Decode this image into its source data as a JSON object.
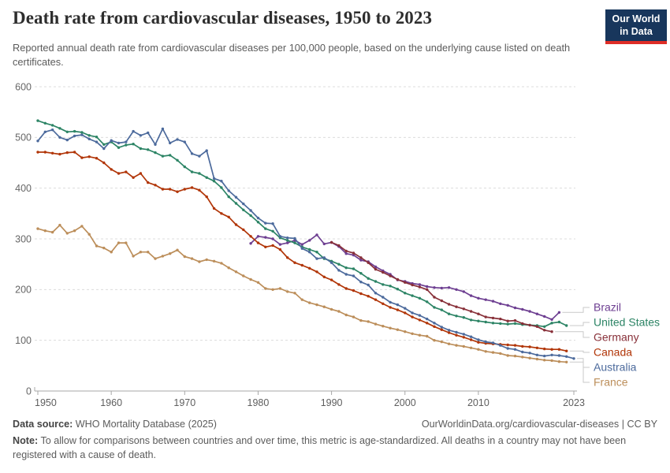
{
  "header": {
    "title": "Death rate from cardiovascular diseases, 1950 to 2023",
    "subtitle": "Reported annual death rate from cardiovascular diseases per 100,000 people, based on the underlying cause listed on death certificates.",
    "logo": {
      "line1": "Our World",
      "line2": "in Data",
      "bg_color": "#18365C",
      "accent_color": "#DE2D26"
    }
  },
  "chart_data": {
    "type": "line",
    "title": "Death rate from cardiovascular diseases, 1950 to 2023",
    "xlabel": "",
    "ylabel": "",
    "x_ticks": [
      1950,
      1960,
      1970,
      1980,
      1990,
      2000,
      2010,
      2023
    ],
    "y_ticks": [
      0,
      100,
      200,
      300,
      400,
      500,
      600
    ],
    "xlim": [
      1950,
      2023
    ],
    "ylim": [
      0,
      600
    ],
    "grid": "horizontal-dashed",
    "legend_position": "right",
    "series": [
      {
        "name": "Brazil",
        "color": "#6D3E91",
        "start_year": 1979,
        "values": [
          291,
          305,
          303,
          300,
          289,
          292,
          297,
          289,
          297,
          308,
          290,
          293,
          285,
          271,
          268,
          258,
          255,
          245,
          237,
          230,
          219,
          216,
          212,
          210,
          206,
          204,
          203,
          204,
          200,
          196,
          188,
          183,
          180,
          177,
          172,
          169,
          164,
          161,
          157,
          152,
          147,
          141,
          155
        ]
      },
      {
        "name": "United States",
        "color": "#2C8465",
        "start_year": 1950,
        "values": [
          533,
          528,
          524,
          518,
          511,
          512,
          510,
          504,
          501,
          486,
          491,
          480,
          485,
          487,
          478,
          476,
          470,
          463,
          465,
          455,
          442,
          432,
          429,
          421,
          414,
          401,
          383,
          370,
          357,
          346,
          333,
          320,
          315,
          302,
          297,
          292,
          284,
          279,
          274,
          261,
          256,
          250,
          243,
          241,
          232,
          222,
          216,
          210,
          207,
          201,
          193,
          188,
          183,
          176,
          165,
          160,
          152,
          148,
          145,
          140,
          138,
          136,
          134,
          133,
          132,
          133,
          131,
          130,
          129,
          127,
          134,
          136,
          129
        ]
      },
      {
        "name": "Germany",
        "color": "#883039",
        "start_year": 1990,
        "values": [
          293,
          287,
          276,
          272,
          263,
          253,
          240,
          234,
          227,
          220,
          214,
          209,
          205,
          200,
          185,
          178,
          171,
          166,
          162,
          157,
          152,
          146,
          144,
          142,
          138,
          139,
          133,
          130,
          127,
          120,
          117
        ]
      },
      {
        "name": "Canada",
        "color": "#B13507",
        "start_year": 1950,
        "values": [
          471,
          471,
          469,
          467,
          470,
          471,
          460,
          462,
          459,
          450,
          437,
          429,
          432,
          421,
          429,
          411,
          406,
          398,
          398,
          393,
          398,
          401,
          396,
          383,
          360,
          350,
          343,
          328,
          318,
          305,
          292,
          284,
          287,
          279,
          263,
          253,
          248,
          242,
          235,
          225,
          219,
          210,
          202,
          198,
          192,
          187,
          180,
          172,
          165,
          160,
          154,
          146,
          140,
          134,
          127,
          121,
          115,
          110,
          106,
          101,
          96,
          94,
          93,
          92,
          91,
          90,
          88,
          87,
          85,
          83,
          82,
          82,
          79
        ]
      },
      {
        "name": "Australia",
        "color": "#4C6A9C",
        "start_year": 1950,
        "values": [
          493,
          511,
          515,
          500,
          495,
          503,
          505,
          497,
          491,
          478,
          494,
          489,
          491,
          512,
          504,
          509,
          486,
          517,
          489,
          496,
          491,
          468,
          463,
          474,
          419,
          414,
          395,
          382,
          369,
          356,
          341,
          331,
          330,
          305,
          302,
          301,
          281,
          274,
          261,
          263,
          253,
          238,
          230,
          227,
          215,
          209,
          193,
          185,
          175,
          170,
          163,
          154,
          149,
          142,
          134,
          126,
          120,
          116,
          112,
          107,
          101,
          97,
          95,
          90,
          84,
          82,
          77,
          75,
          71,
          69,
          71,
          70,
          68,
          64
        ]
      },
      {
        "name": "France",
        "color": "#BC8E5A",
        "start_year": 1950,
        "values": [
          320,
          316,
          313,
          327,
          311,
          316,
          325,
          309,
          286,
          282,
          274,
          292,
          292,
          266,
          274,
          274,
          261,
          266,
          271,
          278,
          265,
          261,
          255,
          259,
          256,
          252,
          243,
          235,
          227,
          220,
          214,
          202,
          200,
          202,
          196,
          193,
          180,
          174,
          170,
          166,
          161,
          157,
          150,
          146,
          139,
          137,
          132,
          128,
          124,
          121,
          117,
          113,
          110,
          108,
          100,
          97,
          93,
          90,
          88,
          85,
          82,
          78,
          76,
          74,
          70,
          69,
          67,
          65,
          63,
          61,
          60,
          58,
          57
        ]
      }
    ],
    "style": {
      "grid_color": "#dcdcdc",
      "axis_color": "#a7a7a7",
      "tick_label_color": "#666666",
      "connector_color": "#c9c9c9"
    }
  },
  "footer": {
    "source_label": "Data source:",
    "source_text": " WHO Mortality Database (2025)",
    "url": "OurWorldinData.org/cardiovascular-diseases",
    "license_sep": " | ",
    "license": "CC BY",
    "note_label": "Note:",
    "note_text": " To allow for comparisons between countries and over time, this metric is age-standardized. All deaths in a country may not have been registered with a cause of death."
  }
}
